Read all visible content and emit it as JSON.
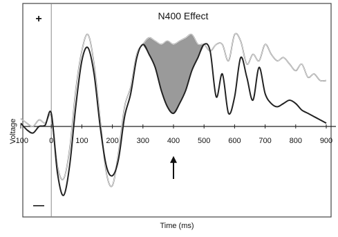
{
  "chart_data": {
    "type": "line",
    "title": "N400 Effect",
    "xlabel": "Time (ms)",
    "ylabel": "Voltage",
    "polarity_top": "+",
    "polarity_bottom": "—",
    "xlim": [
      -100,
      900
    ],
    "ylim": [
      -12,
      14
    ],
    "x_ticks": [
      -100,
      0,
      100,
      200,
      300,
      400,
      500,
      600,
      700,
      800,
      900
    ],
    "x_tick_labels": [
      "-100",
      "0",
      "100",
      "200",
      "300",
      "400",
      "500",
      "600",
      "700",
      "800",
      "900"
    ],
    "grid": false,
    "legend": "none",
    "shaded_region": {
      "between_series": [
        0,
        1
      ],
      "x_start": 290,
      "x_end": 500,
      "color": "#9a9a9a"
    },
    "annotation_arrow": {
      "x": 400,
      "y_from": -8,
      "y_to": -4.5
    },
    "colors": {
      "series_0": "#8c8c8c",
      "series_1": "#222222",
      "fill": "#9a9a9a",
      "frame": "#444444"
    },
    "series": [
      {
        "x": [
          -100,
          -80,
          -60,
          -40,
          -20,
          0,
          20,
          40,
          60,
          80,
          100,
          120,
          140,
          160,
          180,
          200,
          220,
          240,
          260,
          280,
          300,
          320,
          340,
          360,
          380,
          400,
          420,
          440,
          460,
          480,
          500,
          520,
          540,
          560,
          580,
          600,
          620,
          640,
          660,
          680,
          700,
          720,
          740,
          760,
          780,
          800,
          820,
          840,
          860,
          880,
          900
        ],
        "values": [
          1.2,
          0.5,
          0,
          1,
          0.5,
          1.5,
          -6,
          -8,
          -3.5,
          5.5,
          11.5,
          14,
          9.5,
          1,
          -7,
          -9,
          -4,
          3,
          6,
          11,
          12.5,
          13.5,
          13,
          12.5,
          13,
          12.5,
          13,
          13.5,
          14,
          12.5,
          12.5,
          11.5,
          12.5,
          12.5,
          10,
          14,
          13,
          9.5,
          11,
          10,
          12.5,
          11,
          10,
          10.5,
          9.5,
          8.5,
          9.5,
          7.5,
          8,
          7,
          7
        ]
      },
      {
        "x": [
          -100,
          -80,
          -60,
          -40,
          -20,
          0,
          20,
          40,
          60,
          80,
          100,
          120,
          140,
          160,
          180,
          200,
          220,
          240,
          260,
          280,
          300,
          320,
          340,
          360,
          380,
          400,
          420,
          440,
          460,
          480,
          500,
          520,
          540,
          560,
          580,
          600,
          620,
          640,
          660,
          680,
          700,
          720,
          740,
          760,
          780,
          800,
          820,
          840,
          860,
          880,
          900
        ],
        "values": [
          0.5,
          -0.5,
          -1,
          0,
          0.2,
          2,
          -7,
          -10.5,
          -6,
          3,
          10,
          12,
          8,
          0,
          -6,
          -7.5,
          -5,
          1.5,
          5,
          10.5,
          12.5,
          11,
          9,
          5.5,
          3,
          2,
          3.5,
          5.5,
          8.5,
          10.5,
          12.5,
          11.5,
          4.5,
          8,
          2,
          4.5,
          10.5,
          7.5,
          4,
          9,
          5,
          3.5,
          3,
          3.5,
          4,
          3.5,
          2.5,
          2,
          1.5,
          1,
          0.5
        ]
      }
    ]
  }
}
